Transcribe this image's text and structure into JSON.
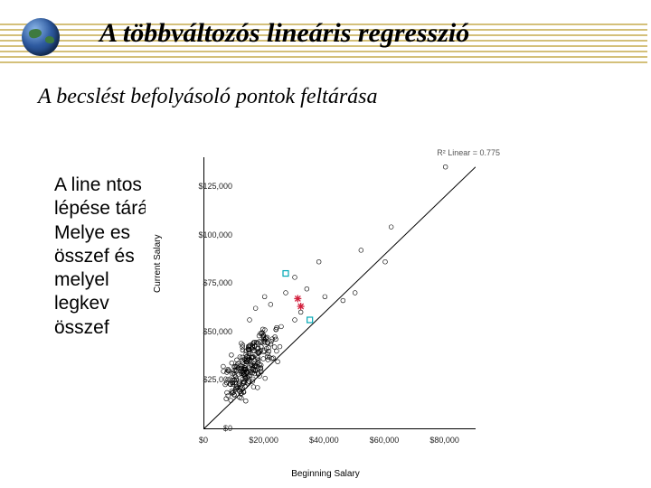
{
  "title": "A többváltozós lineáris regresszió",
  "subtitle": "A becslést befolyásoló pontok feltárása",
  "body_lines": [
    "A line                                                      ntos",
    "lépése                                                      tárása.",
    "Melye                                                       es",
    "összef                                                       és",
    "melyel",
    "legkev",
    "összef"
  ],
  "stripes": {
    "color": "#d4c07a",
    "tops": [
      14,
      20,
      26,
      32,
      38,
      44,
      50,
      56
    ]
  },
  "chart": {
    "type": "scatter",
    "xlabel": "Beginning Salary",
    "ylabel": "Current Salary",
    "r2_label": "R² Linear = 0.775",
    "xlim": [
      0,
      90000
    ],
    "ylim": [
      0,
      140000
    ],
    "yticks": {
      "positions": [
        0,
        25000,
        50000,
        75000,
        100000,
        125000
      ],
      "labels": [
        "$0",
        "$25,000",
        "$50,000",
        "$75,000",
        "$100,000",
        "$125,000"
      ]
    },
    "xticks": {
      "positions": [
        0,
        20000,
        40000,
        60000,
        80000
      ],
      "labels": [
        "$0",
        "$20,000",
        "$40,000",
        "$60,000",
        "$80,000"
      ]
    },
    "fit_line": {
      "x1": 0,
      "y1": 0,
      "x2": 90000,
      "y2": 135000,
      "color": "#000000",
      "width": 1
    },
    "cluster": {
      "comment": "dense cloud of ~300 open circles in lower-left; rendered procedurally",
      "n": 260,
      "x_center": 14000,
      "x_spread": 9000,
      "y_center": 31000,
      "y_spread": 14000,
      "marker": {
        "shape": "circle",
        "radius": 2.4,
        "fill": "none",
        "stroke": "#000000",
        "stroke_width": 0.6
      }
    },
    "outlier_rows": [
      {
        "x": 15000,
        "y": 56000
      },
      {
        "x": 17000,
        "y": 62000
      },
      {
        "x": 20000,
        "y": 68000
      },
      {
        "x": 22000,
        "y": 64000
      },
      {
        "x": 24000,
        "y": 52000
      },
      {
        "x": 27000,
        "y": 70000
      },
      {
        "x": 30000,
        "y": 56000
      },
      {
        "x": 30000,
        "y": 78000
      },
      {
        "x": 32000,
        "y": 60000
      },
      {
        "x": 34000,
        "y": 72000
      },
      {
        "x": 38000,
        "y": 86000
      },
      {
        "x": 40000,
        "y": 68000
      },
      {
        "x": 46000,
        "y": 66000
      },
      {
        "x": 50000,
        "y": 70000
      },
      {
        "x": 52000,
        "y": 92000
      },
      {
        "x": 60000,
        "y": 86000
      },
      {
        "x": 62000,
        "y": 104000
      },
      {
        "x": 80000,
        "y": 135000
      }
    ],
    "special_points": [
      {
        "x": 27000,
        "y": 80000,
        "shape": "square",
        "color": "#00a7b5"
      },
      {
        "x": 35000,
        "y": 56000,
        "shape": "square",
        "color": "#00a7b5"
      },
      {
        "x": 31000,
        "y": 67000,
        "shape": "star",
        "color": "#d21f3c"
      },
      {
        "x": 32000,
        "y": 63000,
        "shape": "star",
        "color": "#d21f3c"
      }
    ],
    "background_color": "#ffffff",
    "axis_color": "#000000",
    "label_fontsize": 10,
    "tick_fontsize": 9
  }
}
